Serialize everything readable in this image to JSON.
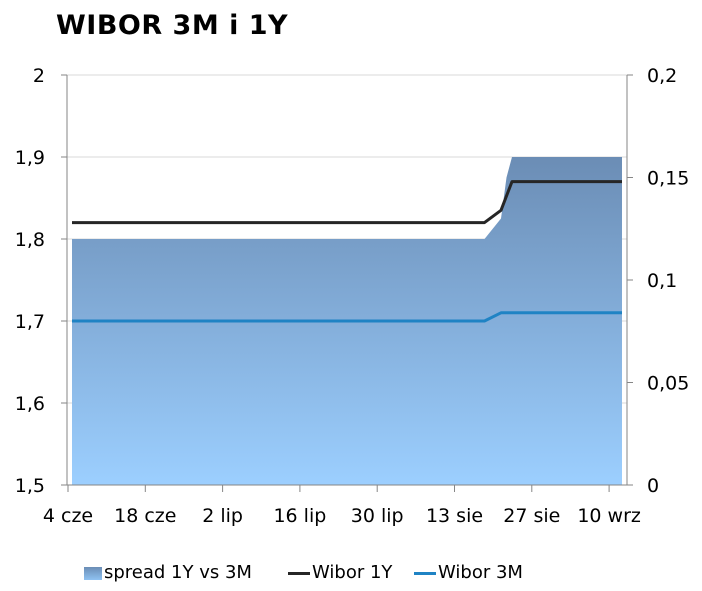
{
  "title": "WIBOR 3M i 1Y",
  "chart_data": {
    "type": "line",
    "title": "WIBOR 3M i 1Y",
    "x_tick_labels": [
      "4 cze",
      "18 cze",
      "2 lip",
      "16 lip",
      "30 lip",
      "13 sie",
      "27 sie",
      "10 wrz"
    ],
    "y_left": {
      "lim": [
        1.5,
        2.0
      ],
      "ticks": [
        "1,5",
        "1,6",
        "1,7",
        "1,8",
        "1,9",
        "2"
      ]
    },
    "y_right": {
      "lim": [
        0,
        0.2
      ],
      "ticks": [
        "0",
        "0,05",
        "0,1",
        "0,15",
        "0,2"
      ]
    },
    "x_range_days": [
      0,
      100
    ],
    "series": [
      {
        "name": "spread 1Y vs 3M",
        "type": "area",
        "axis": "right",
        "color": "#7ea3cf",
        "points": [
          [
            0,
            0.12
          ],
          [
            75,
            0.12
          ],
          [
            78,
            0.13
          ],
          [
            79,
            0.15
          ],
          [
            80,
            0.16
          ],
          [
            100,
            0.16
          ]
        ]
      },
      {
        "name": "Wibor 1Y",
        "type": "line",
        "axis": "left",
        "color": "#262626",
        "points": [
          [
            0,
            1.82
          ],
          [
            75,
            1.82
          ],
          [
            78,
            1.835
          ],
          [
            80,
            1.87
          ],
          [
            100,
            1.87
          ]
        ]
      },
      {
        "name": "Wibor 3M",
        "type": "line",
        "axis": "left",
        "color": "#1f83c4",
        "points": [
          [
            0,
            1.7
          ],
          [
            75,
            1.7
          ],
          [
            78,
            1.71
          ],
          [
            100,
            1.71
          ]
        ]
      }
    ],
    "legend_position": "bottom"
  }
}
